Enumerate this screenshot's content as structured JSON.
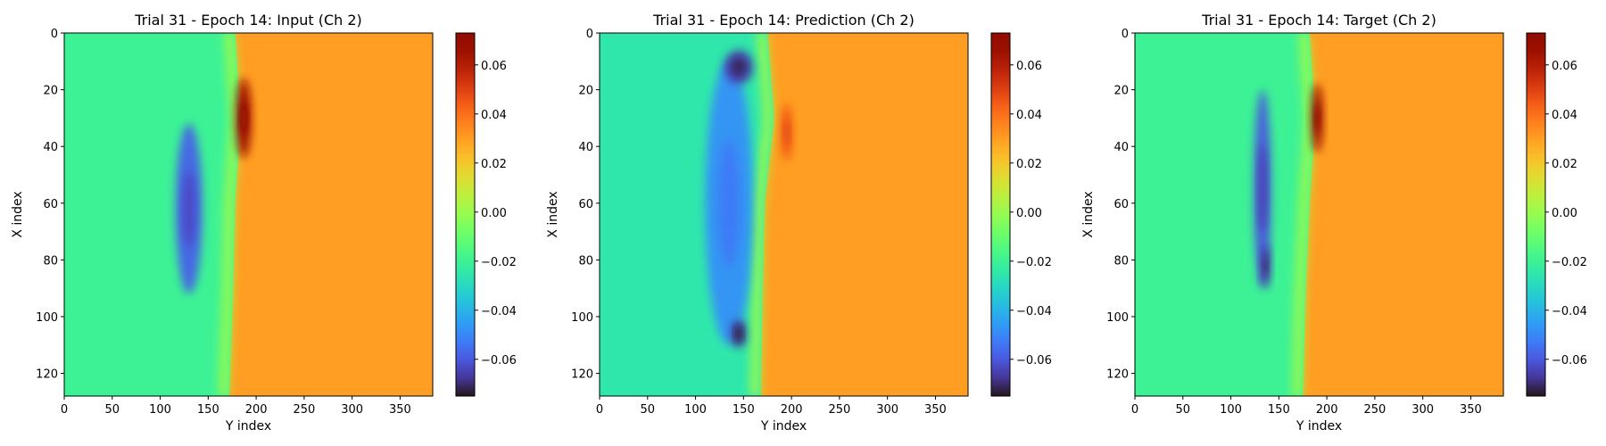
{
  "chart_data": [
    {
      "type": "heatmap",
      "title": "Trial 31 - Epoch 14: Input (Ch 2)",
      "xlabel": "Y index",
      "ylabel": "X index",
      "xlim": [
        0,
        384
      ],
      "ylim": [
        128,
        0
      ],
      "x_ticks": [
        "0",
        "50",
        "100",
        "150",
        "200",
        "250",
        "300",
        "350"
      ],
      "y_ticks": [
        "0",
        "20",
        "40",
        "60",
        "80",
        "100",
        "120"
      ],
      "colorbar": {
        "range": [
          -0.075,
          0.073
        ],
        "ticks": [
          "0.06",
          "0.04",
          "0.02",
          "0.00",
          "−0.02",
          "−0.04",
          "−0.06"
        ],
        "colormap": "turbo"
      },
      "field": {
        "left_level": -0.02,
        "right_level": 0.03,
        "front_x_at_rows": [
          [
            0,
            178
          ],
          [
            30,
            184
          ],
          [
            60,
            178
          ],
          [
            90,
            176
          ],
          [
            128,
            172
          ]
        ],
        "features": [
          {
            "kind": "low",
            "x": 130,
            "y": 62,
            "rx": 14,
            "ry": 30,
            "value": -0.058
          },
          {
            "kind": "high",
            "x": 187,
            "y": 30,
            "rx": 8,
            "ry": 14,
            "value": 0.066
          }
        ]
      }
    },
    {
      "type": "heatmap",
      "title": "Trial 31 - Epoch 14: Prediction (Ch 2)",
      "xlabel": "Y index",
      "ylabel": "X index",
      "xlim": [
        0,
        384
      ],
      "ylim": [
        128,
        0
      ],
      "x_ticks": [
        "0",
        "50",
        "100",
        "150",
        "200",
        "250",
        "300",
        "350"
      ],
      "y_ticks": [
        "0",
        "20",
        "40",
        "60",
        "80",
        "100",
        "120"
      ],
      "colorbar": {
        "range": [
          -0.075,
          0.073
        ],
        "ticks": [
          "0.06",
          "0.04",
          "0.02",
          "0.00",
          "−0.02",
          "−0.04",
          "−0.06"
        ],
        "colormap": "turbo"
      },
      "field": {
        "left_level": -0.025,
        "right_level": 0.03,
        "front_x_at_rows": [
          [
            0,
            175
          ],
          [
            30,
            182
          ],
          [
            60,
            172
          ],
          [
            90,
            170
          ],
          [
            128,
            168
          ]
        ],
        "features": [
          {
            "kind": "low",
            "x": 135,
            "y": 60,
            "rx": 25,
            "ry": 50,
            "value": -0.048
          },
          {
            "kind": "low",
            "x": 145,
            "y": 12,
            "rx": 15,
            "ry": 6,
            "value": -0.066
          },
          {
            "kind": "low",
            "x": 145,
            "y": 106,
            "rx": 8,
            "ry": 5,
            "value": -0.068
          },
          {
            "kind": "high",
            "x": 195,
            "y": 35,
            "rx": 6,
            "ry": 10,
            "value": 0.045
          }
        ]
      }
    },
    {
      "type": "heatmap",
      "title": "Trial 31 - Epoch 14: Target (Ch 2)",
      "xlabel": "Y index",
      "ylabel": "X index",
      "xlim": [
        0,
        384
      ],
      "ylim": [
        128,
        0
      ],
      "x_ticks": [
        "0",
        "50",
        "100",
        "150",
        "200",
        "250",
        "300",
        "350"
      ],
      "y_ticks": [
        "0",
        "20",
        "40",
        "60",
        "80",
        "100",
        "120"
      ],
      "colorbar": {
        "range": [
          -0.075,
          0.073
        ],
        "ticks": [
          "0.06",
          "0.04",
          "0.02",
          "0.00",
          "−0.02",
          "−0.04",
          "−0.06"
        ],
        "colormap": "turbo"
      },
      "field": {
        "left_level": -0.02,
        "right_level": 0.03,
        "front_x_at_rows": [
          [
            0,
            182
          ],
          [
            30,
            188
          ],
          [
            60,
            182
          ],
          [
            90,
            178
          ],
          [
            128,
            175
          ]
        ],
        "features": [
          {
            "kind": "low",
            "x": 133,
            "y": 55,
            "rx": 9,
            "ry": 35,
            "value": -0.06
          },
          {
            "kind": "low",
            "x": 136,
            "y": 82,
            "rx": 5,
            "ry": 8,
            "value": -0.066
          },
          {
            "kind": "high",
            "x": 190,
            "y": 30,
            "rx": 6,
            "ry": 12,
            "value": 0.066
          }
        ]
      }
    }
  ]
}
